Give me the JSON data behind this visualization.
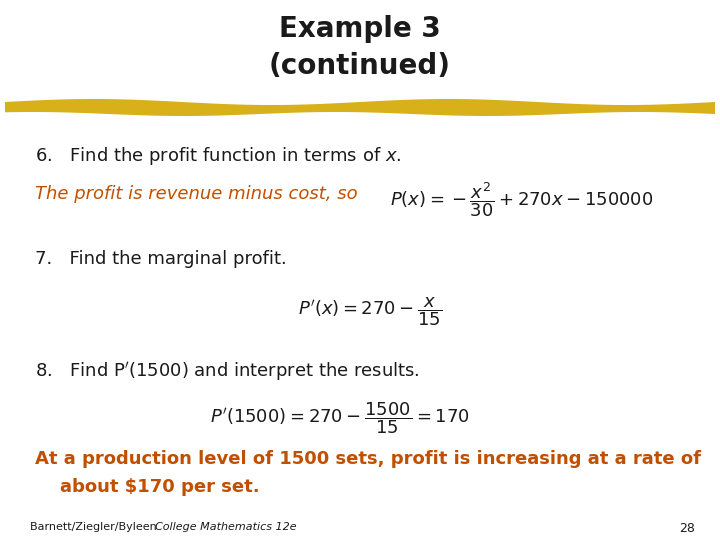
{
  "title_line1": "Example 3",
  "title_line2": "(continued)",
  "title_fontsize": 20,
  "background_color": "#ffffff",
  "divider_color": "#D4A800",
  "text_black": "#1a1a1a",
  "text_orange": "#C05000",
  "footer_left": "Barnett/Ziegler/Byleen ",
  "footer_italic": "College Mathematics 12e",
  "footer_page": "28",
  "body_fontsize": 13,
  "math_fontsize": 13
}
